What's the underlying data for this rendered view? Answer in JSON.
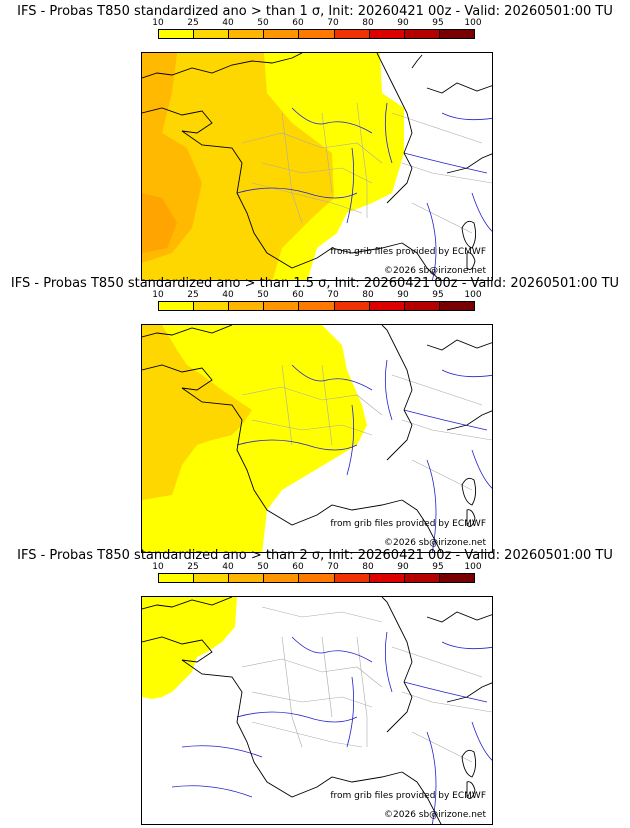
{
  "colorbar": {
    "labels": [
      "10",
      "25",
      "40",
      "50",
      "60",
      "70",
      "80",
      "90",
      "95",
      "100"
    ],
    "colors": [
      "#ffff00",
      "#ffd700",
      "#ffb400",
      "#ff9600",
      "#ff7800",
      "#f03200",
      "#dc0000",
      "#b40000",
      "#780000"
    ]
  },
  "colors": {
    "land_border": "#000000",
    "river": "#2222cc",
    "region_border": "#aaaaaa"
  },
  "panels": [
    {
      "title": "IFS - Probas T850  standardized ano > than 1 σ, Init: 20260421 00z - Valid: 20260501:00 TU",
      "threshold": "1 σ",
      "source_credit": "from grib files provided by ECMWF",
      "copyright": "©2026 sb@irizone.net"
    },
    {
      "title": "IFS - Probas T850  standardized ano > than 1.5 σ, Init: 20260421 00z - Valid: 20260501:00 TU",
      "threshold": "1.5 σ",
      "source_credit": "from grib files provided by ECMWF",
      "copyright": "©2026 sb@irizone.net"
    },
    {
      "title": "IFS - Probas T850  standardized ano > than 2 σ, Init: 20260421 00z - Valid: 20260501:00 TU",
      "threshold": "2 σ",
      "source_credit": "from grib files provided by ECMWF",
      "copyright": "©2026 sb@irizone.net"
    }
  ]
}
